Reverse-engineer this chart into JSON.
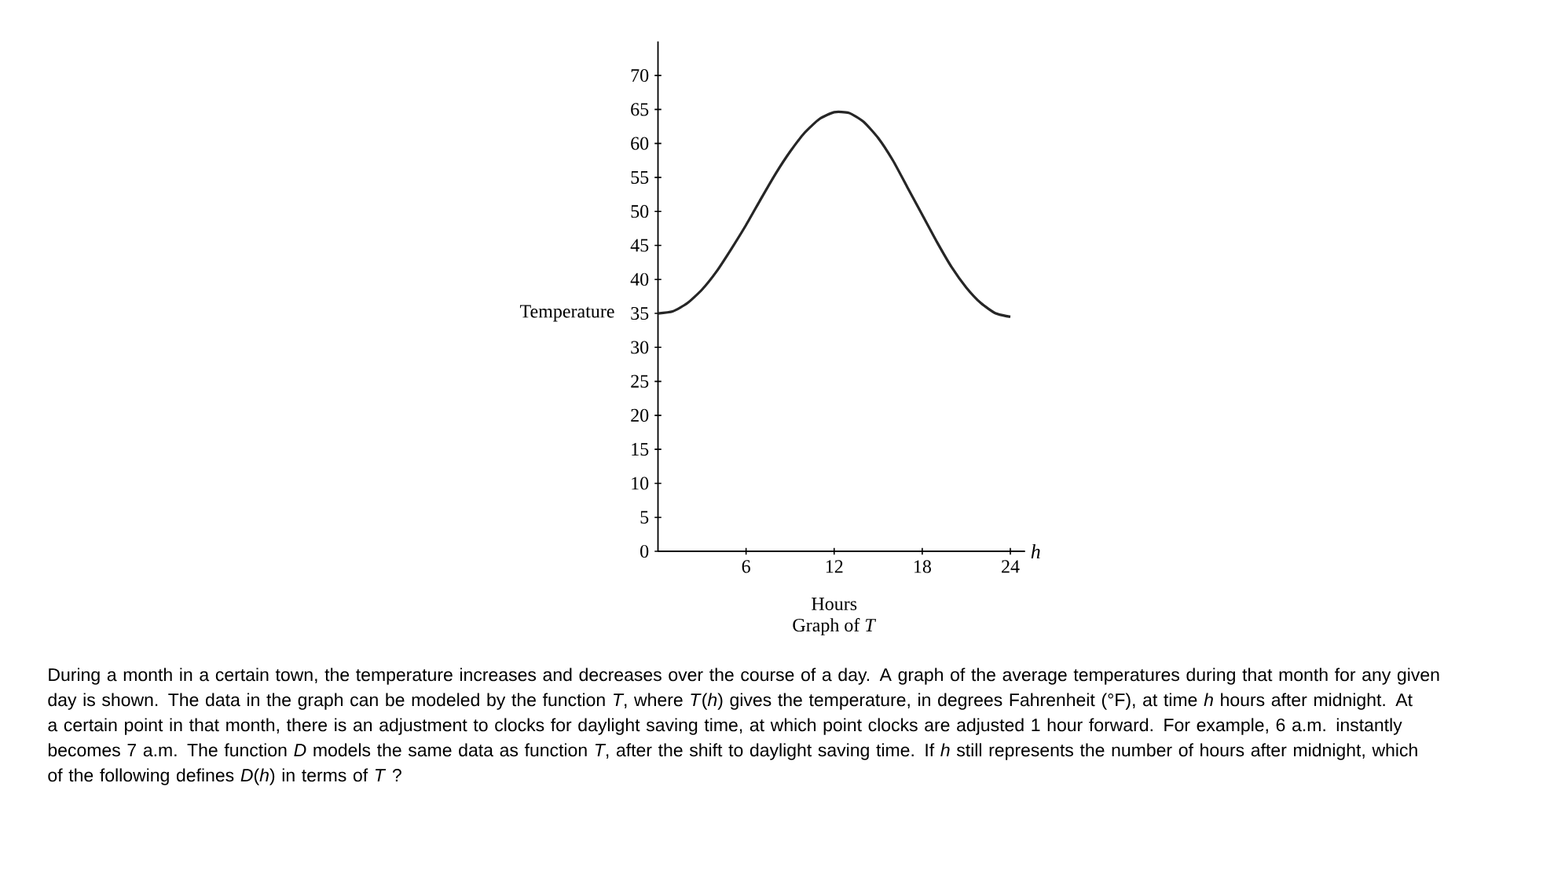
{
  "chart_data": {
    "type": "line",
    "title": "Graph of *T*",
    "xlabel": "Hours",
    "ylabel": "Temperature",
    "x": [
      0,
      1,
      2,
      3,
      4,
      5,
      6,
      7,
      8,
      9,
      10,
      11,
      12,
      13,
      14,
      15,
      16,
      17,
      18,
      19,
      20,
      21,
      22,
      23,
      24
    ],
    "series": [
      {
        "color": "#262626",
        "values": [
          35,
          35.3,
          36.5,
          38.5,
          41.2,
          44.5,
          48,
          51.8,
          55.5,
          58.8,
          61.6,
          63.6,
          64.6,
          64.5,
          63.2,
          60.8,
          57.5,
          53.5,
          49.5,
          45.5,
          41.8,
          38.8,
          36.5,
          35,
          34.5
        ]
      }
    ],
    "xlim": [
      0,
      25
    ],
    "ylim": [
      0,
      75
    ],
    "xticks": [
      6,
      12,
      18,
      24
    ],
    "yticks": [
      0,
      5,
      10,
      15,
      20,
      25,
      30,
      35,
      40,
      45,
      50,
      55,
      60,
      65,
      70
    ],
    "annotations": [
      "*h*",
      "During a month in a certain town, the temperature increases and decreases over the course of a day. A graph of the average temperatures during that month for any given day is shown. The data in the graph can be modeled by the function *T*, where *T*(*h*) gives the temperature, in degrees Fahrenheit (°F), at time *h* hours after midnight. At a certain point in that month, there is an adjustment to clocks for daylight saving time, at which point clocks are adjusted 1 hour forward. For example, 6 a.m. instantly becomes 7 a.m. The function *D* models the same data as function *T*, after the shift to daylight saving time. If *h* still represents the number of hours after midnight, which of the following defines *D*(*h*) in terms of *T* ?"
    ]
  }
}
